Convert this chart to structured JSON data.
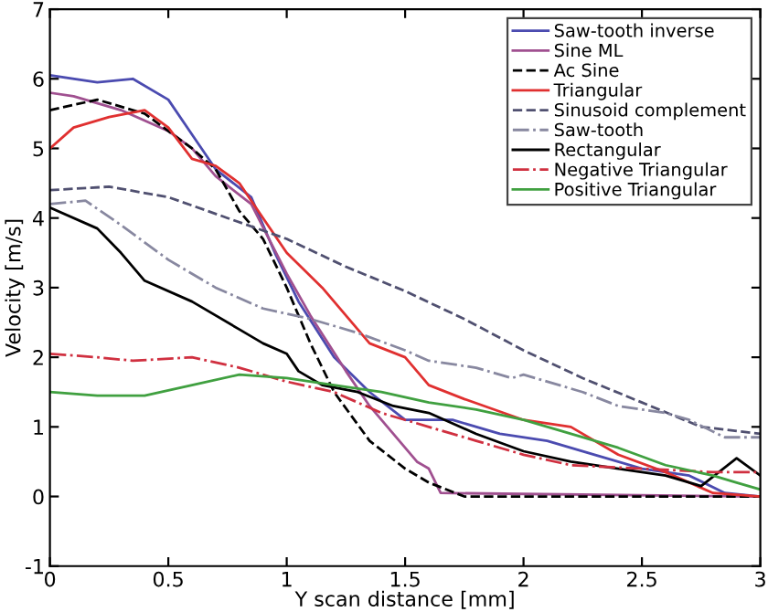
{
  "chart_data": {
    "type": "line",
    "xlabel": "Y scan distance [mm]",
    "ylabel": "Velocity [m/s]",
    "xlim": [
      0,
      3
    ],
    "ylim": [
      -1,
      7
    ],
    "xticks": [
      0,
      0.5,
      1,
      1.5,
      2,
      2.5,
      3
    ],
    "yticks": [
      -1,
      0,
      1,
      2,
      3,
      4,
      5,
      6,
      7
    ],
    "grid": false,
    "legend": "top right",
    "marker": "none",
    "series": [
      {
        "name": "Saw-tooth inverse",
        "color": "#4b4bb0",
        "line_style": "solid",
        "x": [
          0,
          0.2,
          0.35,
          0.5,
          0.6,
          0.7,
          0.85,
          0.95,
          1.05,
          1.2,
          1.35,
          1.5,
          1.7,
          1.9,
          2.1,
          2.3,
          2.5,
          2.7,
          2.85,
          3
        ],
        "values": [
          6.05,
          5.95,
          6.0,
          5.7,
          5.2,
          4.7,
          4.3,
          3.5,
          2.8,
          2.0,
          1.5,
          1.1,
          1.1,
          0.9,
          0.8,
          0.6,
          0.4,
          0.3,
          0.05,
          0.0
        ]
      },
      {
        "name": "Sine ML",
        "color": "#a05090",
        "line_style": "solid",
        "x": [
          0,
          0.1,
          0.3,
          0.5,
          0.6,
          0.7,
          0.85,
          1.0,
          1.1,
          1.25,
          1.35,
          1.45,
          1.55,
          1.6,
          1.65,
          3
        ],
        "values": [
          5.8,
          5.75,
          5.55,
          5.25,
          5.0,
          4.6,
          4.2,
          3.2,
          2.6,
          1.8,
          1.3,
          0.9,
          0.5,
          0.4,
          0.05,
          0.0
        ]
      },
      {
        "name": "Ac Sine",
        "color": "#000000",
        "line_style": "dashed",
        "x": [
          0,
          0.2,
          0.4,
          0.6,
          0.7,
          0.8,
          0.9,
          1.0,
          1.1,
          1.2,
          1.35,
          1.5,
          1.6,
          1.75,
          3
        ],
        "values": [
          5.55,
          5.7,
          5.5,
          5.0,
          4.7,
          4.1,
          3.7,
          3.0,
          2.2,
          1.5,
          0.8,
          0.4,
          0.2,
          0.0,
          0.0
        ]
      },
      {
        "name": "Triangular",
        "color": "#e03030",
        "line_style": "solid",
        "x": [
          0,
          0.1,
          0.25,
          0.4,
          0.5,
          0.6,
          0.7,
          0.8,
          0.9,
          1.0,
          1.15,
          1.25,
          1.35,
          1.5,
          1.6,
          1.75,
          2.0,
          2.2,
          2.4,
          2.6,
          2.8,
          3
        ],
        "values": [
          5.0,
          5.3,
          5.45,
          5.55,
          5.3,
          4.85,
          4.75,
          4.5,
          4.0,
          3.5,
          3.0,
          2.6,
          2.2,
          2.0,
          1.6,
          1.4,
          1.1,
          1.0,
          0.6,
          0.35,
          0.05,
          0.0
        ]
      },
      {
        "name": "Sinusoid complement",
        "color": "#505070",
        "line_style": "dashed",
        "x": [
          0,
          0.25,
          0.5,
          0.75,
          1.0,
          1.25,
          1.5,
          1.75,
          2.0,
          2.25,
          2.5,
          2.75,
          3
        ],
        "values": [
          4.4,
          4.45,
          4.3,
          4.0,
          3.7,
          3.3,
          2.95,
          2.55,
          2.1,
          1.7,
          1.35,
          1.0,
          0.9
        ]
      },
      {
        "name": "Saw-tooth",
        "color": "#8888a0",
        "line_style": "dashdot",
        "x": [
          0,
          0.15,
          0.3,
          0.5,
          0.7,
          0.9,
          1.1,
          1.3,
          1.5,
          1.6,
          1.8,
          1.95,
          2.0,
          2.25,
          2.4,
          2.6,
          2.7,
          2.85,
          3
        ],
        "values": [
          4.2,
          4.25,
          3.9,
          3.4,
          3.0,
          2.7,
          2.55,
          2.35,
          2.1,
          1.95,
          1.85,
          1.7,
          1.75,
          1.5,
          1.3,
          1.2,
          1.1,
          0.85,
          0.85
        ]
      },
      {
        "name": "Rectangular",
        "color": "#000000",
        "line_style": "solid",
        "x": [
          0,
          0.2,
          0.3,
          0.4,
          0.6,
          0.8,
          0.9,
          1.0,
          1.05,
          1.15,
          1.3,
          1.45,
          1.6,
          1.8,
          2.0,
          2.2,
          2.4,
          2.6,
          2.75,
          2.9,
          3
        ],
        "values": [
          4.15,
          3.85,
          3.5,
          3.1,
          2.8,
          2.4,
          2.2,
          2.05,
          1.8,
          1.6,
          1.5,
          1.3,
          1.2,
          0.9,
          0.65,
          0.5,
          0.4,
          0.3,
          0.15,
          0.55,
          0.3
        ]
      },
      {
        "name": "Negative Triangular",
        "color": "#d03040",
        "line_style": "dashdot",
        "x": [
          0,
          0.2,
          0.35,
          0.6,
          0.8,
          1.0,
          1.2,
          1.4,
          1.6,
          1.8,
          2.0,
          2.2,
          2.5,
          2.8,
          3
        ],
        "values": [
          2.05,
          2.0,
          1.95,
          2.0,
          1.85,
          1.65,
          1.5,
          1.2,
          1.0,
          0.8,
          0.6,
          0.45,
          0.4,
          0.35,
          0.35
        ]
      },
      {
        "name": "Positive Triangular",
        "color": "#40a040",
        "line_style": "solid",
        "x": [
          0,
          0.2,
          0.4,
          0.6,
          0.8,
          1.0,
          1.2,
          1.4,
          1.6,
          1.8,
          2.0,
          2.2,
          2.4,
          2.6,
          2.8,
          2.9,
          3
        ],
        "values": [
          1.5,
          1.45,
          1.45,
          1.6,
          1.75,
          1.7,
          1.6,
          1.5,
          1.35,
          1.25,
          1.1,
          0.9,
          0.7,
          0.45,
          0.3,
          0.2,
          0.1
        ]
      }
    ]
  }
}
